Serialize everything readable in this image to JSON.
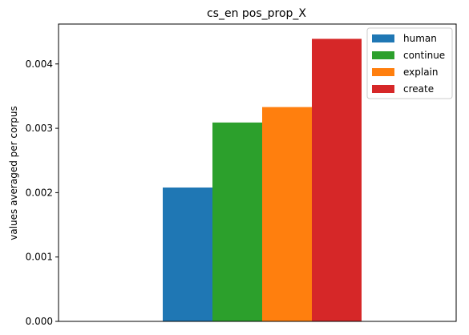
{
  "chart_data": {
    "type": "bar",
    "title": "cs_en pos_prop_X",
    "xlabel": "",
    "ylabel": "values averaged per corpus",
    "categories": [
      ""
    ],
    "series": [
      {
        "name": "human",
        "values": [
          0.00208
        ],
        "color": "#1f77b4"
      },
      {
        "name": "continue",
        "values": [
          0.00309
        ],
        "color": "#2ca02c"
      },
      {
        "name": "explain",
        "values": [
          0.00333
        ],
        "color": "#ff7f0e"
      },
      {
        "name": "create",
        "values": [
          0.00439
        ],
        "color": "#d62728"
      }
    ],
    "ylim": [
      0,
      0.00462
    ],
    "yticks": [
      0,
      0.001,
      0.002,
      0.003,
      0.004
    ],
    "ytick_labels": [
      "0.000",
      "0.001",
      "0.002",
      "0.003",
      "0.004"
    ],
    "grid": false,
    "legend": {
      "position": "top-right"
    }
  }
}
